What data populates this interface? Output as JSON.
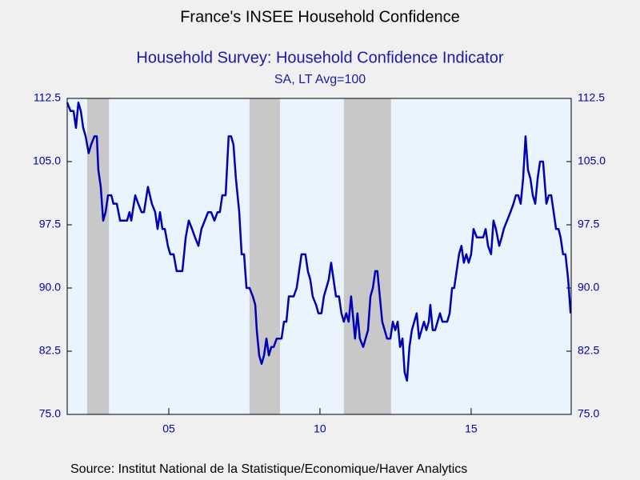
{
  "chart_data": {
    "type": "line",
    "title": "France's INSEE Household Confidence",
    "subtitle": "Household Survey: Household Confidence Indicator",
    "units": "SA, LT Avg=100",
    "source": "Source:  Institut National de la Statistique/Economique/Haver Analytics",
    "xlim": [
      2001.64,
      2018.31
    ],
    "xticks": [
      {
        "value": 2005,
        "label": "05"
      },
      {
        "value": 2010,
        "label": "10"
      },
      {
        "value": 2015,
        "label": "15"
      }
    ],
    "ylim": [
      75,
      112.5
    ],
    "yticks": [
      {
        "value": 75,
        "label": "75.0"
      },
      {
        "value": 82.5,
        "label": "82.5"
      },
      {
        "value": 90,
        "label": "90.0"
      },
      {
        "value": 97.5,
        "label": "97.5"
      },
      {
        "value": 105,
        "label": "105.0"
      },
      {
        "value": 112.5,
        "label": "112.5"
      }
    ],
    "shaded_periods": [
      [
        2002.3,
        2003.02
      ],
      [
        2007.67,
        2008.68
      ],
      [
        2010.79,
        2012.35
      ]
    ],
    "shade_color": "#c8c8c8",
    "series": [
      {
        "color": "#0000b4",
        "x": [
          2001.64,
          2001.75,
          2001.85,
          2001.93,
          2002.01,
          2002.09,
          2002.17,
          2002.25,
          2002.35,
          2002.43,
          2002.54,
          2002.62,
          2002.67,
          2002.75,
          2002.83,
          2002.91,
          2002.99,
          2003.1,
          2003.17,
          2003.28,
          2003.39,
          2003.52,
          2003.62,
          2003.7,
          2003.76,
          2003.89,
          2003.99,
          2004.1,
          2004.18,
          2004.31,
          2004.44,
          2004.55,
          2004.63,
          2004.71,
          2004.79,
          2004.87,
          2004.97,
          2005.05,
          2005.16,
          2005.26,
          2005.45,
          2005.56,
          2005.66,
          2005.77,
          2005.87,
          2005.98,
          2006.08,
          2006.19,
          2006.3,
          2006.4,
          2006.51,
          2006.61,
          2006.69,
          2006.77,
          2006.88,
          2006.98,
          2007.06,
          2007.14,
          2007.22,
          2007.33,
          2007.41,
          2007.49,
          2007.57,
          2007.67,
          2007.78,
          2007.86,
          2007.91,
          2007.99,
          2008.07,
          2008.15,
          2008.23,
          2008.31,
          2008.39,
          2008.47,
          2008.57,
          2008.73,
          2008.81,
          2008.89,
          2008.97,
          2009.13,
          2009.23,
          2009.31,
          2009.39,
          2009.52,
          2009.6,
          2009.68,
          2009.76,
          2009.87,
          2009.95,
          2010.05,
          2010.13,
          2010.21,
          2010.29,
          2010.37,
          2010.45,
          2010.53,
          2010.63,
          2010.71,
          2010.79,
          2010.87,
          2010.95,
          2011.03,
          2011.11,
          2011.16,
          2011.24,
          2011.32,
          2011.43,
          2011.51,
          2011.59,
          2011.67,
          2011.75,
          2011.83,
          2011.9,
          2011.98,
          2012.06,
          2012.14,
          2012.22,
          2012.33,
          2012.41,
          2012.49,
          2012.57,
          2012.65,
          2012.73,
          2012.8,
          2012.88,
          2012.96,
          2013.04,
          2013.12,
          2013.2,
          2013.28,
          2013.36,
          2013.44,
          2013.52,
          2013.6,
          2013.65,
          2013.73,
          2013.81,
          2013.89,
          2013.97,
          2014.05,
          2014.13,
          2014.21,
          2014.29,
          2014.37,
          2014.44,
          2014.52,
          2014.6,
          2014.68,
          2014.76,
          2014.84,
          2014.92,
          2015.0,
          2015.08,
          2015.19,
          2015.29,
          2015.4,
          2015.48,
          2015.56,
          2015.66,
          2015.74,
          2015.82,
          2015.93,
          2016.01,
          2016.08,
          2016.19,
          2016.3,
          2016.4,
          2016.48,
          2016.56,
          2016.64,
          2016.72,
          2016.8,
          2016.88,
          2016.96,
          2017.04,
          2017.12,
          2017.2,
          2017.28,
          2017.38,
          2017.49,
          2017.57,
          2017.65,
          2017.73,
          2017.81,
          2017.89,
          2017.96,
          2018.04,
          2018.12,
          2018.21,
          2018.29
        ],
        "values": [
          112,
          111,
          111,
          109,
          112,
          111,
          109,
          108,
          106,
          107,
          108,
          108,
          104,
          102,
          98,
          99,
          101,
          101,
          100,
          100,
          98,
          98,
          98,
          99,
          98,
          101,
          100,
          99,
          99,
          102,
          100,
          99,
          97,
          99,
          97,
          97,
          95,
          94,
          94,
          92,
          92,
          96,
          98,
          97,
          96,
          95,
          97,
          98,
          99,
          99,
          98,
          99,
          99,
          101,
          101,
          108,
          108,
          107,
          103,
          99,
          94,
          94,
          90,
          90,
          89,
          88,
          85,
          82,
          81,
          82,
          84,
          82,
          83,
          83,
          84,
          84,
          86,
          86,
          89,
          89,
          90,
          92,
          94,
          94,
          92,
          91,
          89,
          88,
          87,
          87,
          89,
          90,
          91,
          93,
          91,
          89,
          89,
          87,
          86,
          87,
          86,
          89,
          86,
          84,
          87,
          84,
          83,
          84,
          85,
          89,
          90,
          92,
          92,
          89,
          86,
          85,
          84,
          84,
          86,
          85,
          86,
          83,
          84,
          80,
          79,
          83,
          85,
          86,
          87,
          84,
          85,
          86,
          85,
          86,
          88,
          85,
          85,
          86,
          87,
          86,
          86,
          86,
          87,
          90,
          90,
          92,
          94,
          95,
          93,
          94,
          93,
          94,
          97,
          96,
          96,
          96,
          97,
          95,
          94,
          98,
          97,
          95,
          96,
          97,
          98,
          99,
          100,
          101,
          101,
          100,
          103,
          108,
          104,
          103,
          101,
          100,
          103,
          105,
          105,
          100,
          101,
          101,
          99,
          97,
          97,
          96,
          94,
          94,
          91,
          87
        ]
      }
    ]
  }
}
